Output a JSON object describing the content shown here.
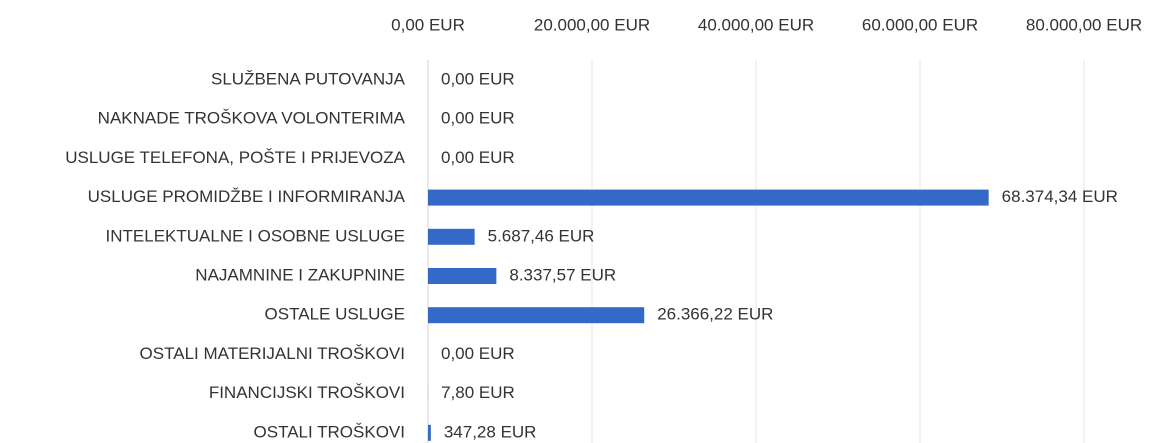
{
  "chart_data": {
    "type": "bar",
    "orientation": "horizontal",
    "categories": [
      "SLUŽBENA PUTOVANJA",
      "NAKNADE TROŠKOVA VOLONTERIMA",
      "USLUGE TELEFONA, POŠTE I PRIJEVOZA",
      "USLUGE PROMIDŽBE I INFORMIRANJA",
      "INTELEKTUALNE I OSOBNE USLUGE",
      "NAJAMNINE I ZAKUPNINE",
      "OSTALE USLUGE",
      "OSTALI MATERIJALNI TROŠKOVI",
      "FINANCIJSKI TROŠKOVI",
      "OSTALI TROŠKOVI"
    ],
    "values": [
      0,
      0,
      0,
      68374.34,
      5687.46,
      8337.57,
      26366.22,
      0,
      7.8,
      347.28
    ],
    "value_labels": [
      "0,00 EUR",
      "0,00 EUR",
      "0,00 EUR",
      "68.374,34 EUR",
      "5.687,46 EUR",
      "8.337,57 EUR",
      "26.366,22 EUR",
      "0,00 EUR",
      "7,80 EUR",
      "347,28 EUR"
    ],
    "color": "#3569c8",
    "xlim": [
      0,
      80000
    ],
    "xticks": [
      {
        "value": 0,
        "label": "0,00 EUR"
      },
      {
        "value": 20000,
        "label": "20.000,00 EUR"
      },
      {
        "value": 40000,
        "label": "40.000,00 EUR"
      },
      {
        "value": 60000,
        "label": "60.000,00 EUR"
      },
      {
        "value": 80000,
        "label": "80.000,00 EUR"
      }
    ],
    "grid": true
  }
}
